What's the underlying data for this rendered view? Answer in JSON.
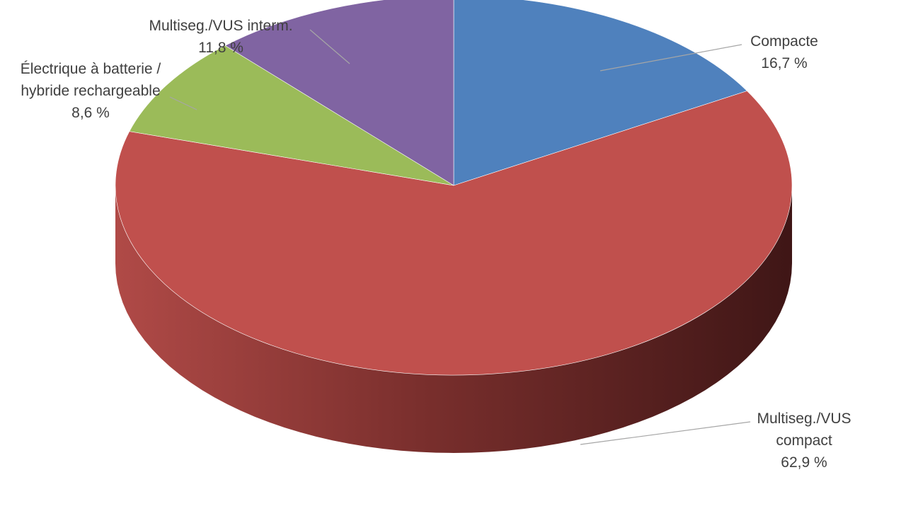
{
  "chart_data": {
    "type": "pie",
    "title": "",
    "three_d": true,
    "slices": [
      {
        "key": "compacte",
        "label": "Compacte",
        "value": 16.7,
        "value_label": "16,7 %",
        "color": "#4f81bd"
      },
      {
        "key": "vus-compact",
        "label": "Multiseg./VUS compact",
        "value": 62.9,
        "value_label": "62,9 %",
        "color": "#c0504d"
      },
      {
        "key": "electrique",
        "label": "Électrique à batterie / hybride rechargeable",
        "value": 8.6,
        "value_label": "8,6 %",
        "color": "#9bbb59"
      },
      {
        "key": "vus-interm",
        "label": "Multiseg./VUS interm.",
        "value": 11.8,
        "value_label": "11,8 %",
        "color": "#8064a2"
      }
    ],
    "label_lines": {
      "compacte": [
        "Compacte",
        "16,7 %"
      ],
      "vus-compact": [
        "Multiseg./VUS",
        "compact",
        "62,9 %"
      ],
      "electrique": [
        "Électrique à batterie /",
        "hybride rechargeable",
        "8,6 %"
      ],
      "vus-interm": [
        "Multiseg./VUS interm.",
        "11,8 %"
      ]
    }
  }
}
